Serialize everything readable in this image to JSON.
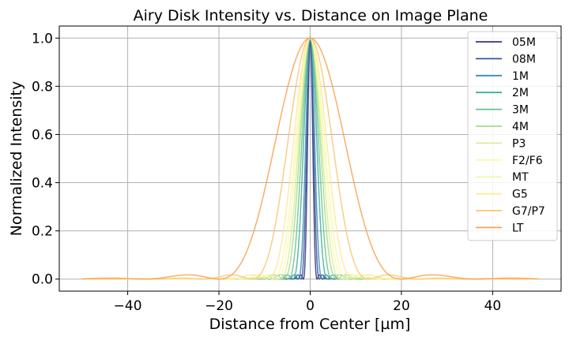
{
  "chart_data": {
    "type": "line",
    "title": "Airy Disk Intensity vs. Distance on Image Plane",
    "xlabel": "Distance from Center [µm]",
    "ylabel": "Normalized Intensity",
    "xlim": [
      -55,
      55
    ],
    "ylim": [
      -0.05,
      1.05
    ],
    "x_range": [
      -50,
      50
    ],
    "xticks": [
      -40,
      -20,
      0,
      20,
      40
    ],
    "xtick_labels": [
      "−40",
      "−20",
      "0",
      "20",
      "40"
    ],
    "yticks": [
      0.0,
      0.2,
      0.4,
      0.6,
      0.8,
      1.0
    ],
    "ytick_labels": [
      "0.0",
      "0.2",
      "0.4",
      "0.6",
      "0.8",
      "1.0"
    ],
    "grid": true,
    "legend_position": "top-right",
    "model": "Airy pattern I(r) = [2·J1(k r)/(k r)]², first dark ring at first_zero_um",
    "series": [
      {
        "name": "05M",
        "color": "#3b2f80",
        "first_zero_um": 1.5
      },
      {
        "name": "08M",
        "color": "#33559a",
        "first_zero_um": 2.0
      },
      {
        "name": "1M",
        "color": "#3a8ab0",
        "first_zero_um": 2.6
      },
      {
        "name": "2M",
        "color": "#3fae9a",
        "first_zero_um": 3.8
      },
      {
        "name": "3M",
        "color": "#66c38a",
        "first_zero_um": 4.8
      },
      {
        "name": "4M",
        "color": "#a6d98a",
        "first_zero_um": 5.8
      },
      {
        "name": "P3",
        "color": "#d8ec9a",
        "first_zero_um": 6.6
      },
      {
        "name": "F2/F6",
        "color": "#fdf8b0",
        "first_zero_um": 7.4
      },
      {
        "name": "MT",
        "color": "#f2f9b0",
        "first_zero_um": 8.2
      },
      {
        "name": "G5",
        "color": "#fee895",
        "first_zero_um": 9.5
      },
      {
        "name": "G7/P7",
        "color": "#fdc472",
        "first_zero_um": 12.8
      },
      {
        "name": "LT",
        "color": "#f9a04e",
        "first_zero_um": 20.0
      }
    ]
  }
}
